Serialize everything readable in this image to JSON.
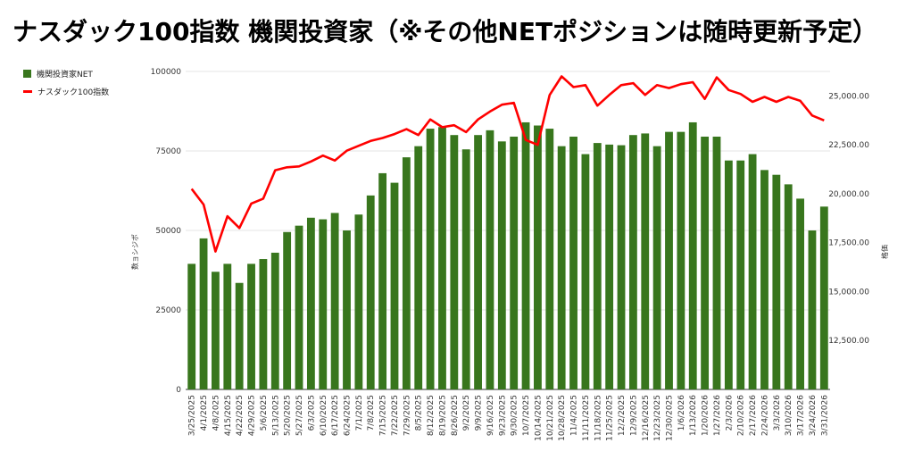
{
  "title": "ナスダック100指数 機関投資家（※その他NETポジションは随時更新予定）",
  "legend": {
    "bar_label": "機関投資家NET",
    "line_label": "ナスダック100指数"
  },
  "colors": {
    "bar": "#38761d",
    "line": "#ff0000",
    "grid": "#e6e6e6"
  },
  "chart_data": {
    "type": "bar+line",
    "title": "ナスダック100指数 機関投資家（※その他NETポジションは随時更新予定）",
    "ylabel_left": "数ョシジポ",
    "ylabel_right": "格価",
    "ylim_left": [
      0,
      100000
    ],
    "yticks_left": [
      "100000",
      "75000",
      "50000",
      "25000",
      "0"
    ],
    "ylim_right": [
      10000,
      26250
    ],
    "yticks_right": [
      "25,000.00",
      "22,500.00",
      "20,000.00",
      "17,500.00",
      "15,000.00",
      "12,500.00"
    ],
    "grid": true,
    "legend_position": "top-left",
    "x_labels": [
      "3/25/2025",
      "4/1/2025",
      "4/8/2025",
      "4/15/2025",
      "4/22/2025",
      "4/29/2025",
      "5/6/2025",
      "5/13/2025",
      "5/20/2025",
      "5/27/2025",
      "6/3/2025",
      "6/10/2025",
      "6/17/2025",
      "6/24/2025",
      "7/1/2025",
      "7/8/2025",
      "7/15/2025",
      "7/22/2025",
      "7/29/2025",
      "8/5/2025",
      "8/12/2025",
      "8/19/2025",
      "8/26/2025",
      "9/2/2025",
      "9/9/2025",
      "9/16/2025",
      "9/23/2025",
      "9/30/2025",
      "10/7/2025",
      "10/14/2025",
      "10/21/2025",
      "10/28/2025",
      "11/4/2025",
      "11/11/2025",
      "11/18/2025",
      "11/25/2025",
      "12/2/2025",
      "12/9/2025",
      "12/16/2025",
      "12/23/2025",
      "12/30/2025",
      "1/6/2026",
      "1/13/2026",
      "1/20/2026",
      "1/27/2026",
      "2/3/2026",
      "2/10/2026",
      "2/17/2026",
      "2/24/2026",
      "3/3/2026",
      "3/10/2026",
      "3/17/2026",
      "3/24/2026",
      "3/31/2026"
    ],
    "bar_values": [
      39500,
      47500,
      37000,
      39500,
      33500,
      39500,
      41000,
      43000,
      49500,
      51500,
      54000,
      53500,
      55500,
      50000,
      55000,
      61000,
      68000,
      65000,
      73000,
      76500,
      82000,
      82500,
      80000,
      75500,
      80000,
      81500,
      78000,
      79500,
      84000,
      83000,
      82000,
      76500,
      79500,
      74000,
      77500,
      77000,
      76800,
      80000,
      80500,
      76500,
      81000,
      81000,
      84000,
      79500,
      79500,
      72000,
      72000,
      74000,
      69000,
      67500,
      64500,
      60000,
      50000,
      57500
    ],
    "line_values": [
      20250,
      19450,
      17050,
      18850,
      18250,
      19500,
      19750,
      21200,
      21350,
      21400,
      21650,
      21950,
      21700,
      22200,
      22450,
      22700,
      22850,
      23050,
      23300,
      23000,
      23800,
      23400,
      23500,
      23150,
      23800,
      24200,
      24550,
      24650,
      22750,
      22500,
      25050,
      26000,
      25450,
      25550,
      24500,
      25050,
      25550,
      25650,
      25050,
      25550,
      25400,
      25600,
      25700,
      24850,
      25950,
      25300,
      25100,
      24700,
      24950,
      24700,
      24950,
      24750,
      24000,
      23750
    ]
  }
}
